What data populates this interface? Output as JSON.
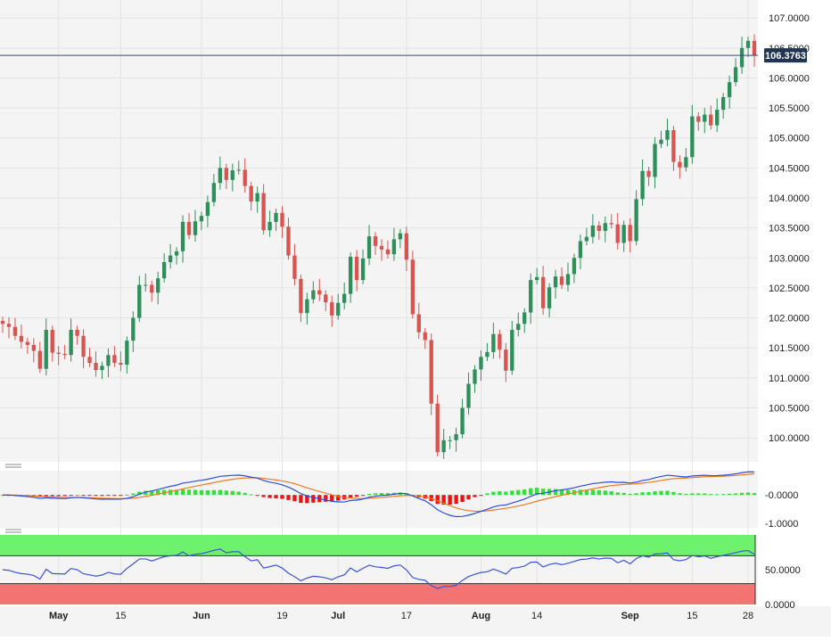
{
  "chart_data": {
    "type": "candlestick",
    "title": "",
    "colors": {
      "up": "#2f8f5b",
      "down": "#d9534f",
      "grid": "#e3e3e3",
      "price_line": "#3b4a6b",
      "price_tag_bg": "#1f3552",
      "macd_line": "#2a4fe0",
      "signal_line": "#f07a23",
      "hist_pos": "#33e033",
      "hist_neg": "#ee1111",
      "rsi_line": "#3a55d4",
      "rsi_overbought": "#6ef26e",
      "rsi_oversold": "#f47474"
    },
    "price_panel": {
      "ylim": [
        99.6,
        107.3
      ],
      "y_ticks": [
        "107.0000",
        "106.5000",
        "106.0000",
        "105.5000",
        "105.0000",
        "104.5000",
        "104.0000",
        "103.5000",
        "103.0000",
        "102.5000",
        "102.0000",
        "101.5000",
        "101.0000",
        "100.5000",
        "100.0000"
      ],
      "last_price": 106.3763,
      "last_price_label": "106.3763"
    },
    "x_ticks": [
      {
        "label": "May",
        "bold": true,
        "idx": 9
      },
      {
        "label": "15",
        "bold": false,
        "idx": 19
      },
      {
        "label": "Jun",
        "bold": true,
        "idx": 32
      },
      {
        "label": "19",
        "bold": false,
        "idx": 45
      },
      {
        "label": "Jul",
        "bold": true,
        "idx": 54
      },
      {
        "label": "17",
        "bold": false,
        "idx": 65
      },
      {
        "label": "Aug",
        "bold": true,
        "idx": 77
      },
      {
        "label": "14",
        "bold": false,
        "idx": 86
      },
      {
        "label": "Sep",
        "bold": true,
        "idx": 101
      },
      {
        "label": "15",
        "bold": false,
        "idx": 111
      },
      {
        "label": "28",
        "bold": false,
        "idx": 120
      }
    ],
    "candles": {
      "open": [
        101.95,
        101.9,
        101.85,
        101.7,
        101.6,
        101.55,
        101.45,
        101.15,
        101.8,
        101.42,
        101.4,
        101.38,
        101.8,
        101.7,
        101.35,
        101.25,
        101.13,
        101.2,
        101.38,
        101.25,
        101.22,
        101.62,
        102.0,
        102.55,
        102.55,
        102.42,
        102.66,
        102.93,
        103.04,
        103.11,
        103.6,
        103.38,
        103.61,
        103.7,
        103.93,
        104.25,
        104.5,
        104.3,
        104.46,
        104.47,
        104.2,
        103.94,
        104.08,
        103.46,
        103.6,
        103.75,
        103.52,
        103.04,
        102.65,
        102.08,
        102.31,
        102.46,
        102.39,
        102.26,
        102.04,
        102.25,
        102.4,
        103.02,
        102.63,
        102.99,
        103.36,
        103.2,
        103.14,
        103.06,
        103.31,
        103.41,
        102.97,
        102.06,
        101.76,
        101.63,
        100.57,
        99.76,
        99.96,
        99.96,
        100.06,
        100.5,
        100.9,
        101.14,
        101.35,
        101.43,
        101.73,
        101.47,
        101.12,
        101.8,
        101.9,
        102.09,
        102.63,
        102.68,
        102.16,
        102.51,
        102.69,
        102.55,
        102.73,
        103.0,
        103.28,
        103.35,
        103.54,
        103.45,
        103.58,
        103.56,
        103.25,
        103.55,
        103.28,
        103.98,
        104.45,
        104.35,
        104.9,
        104.97,
        105.13,
        104.6,
        104.51,
        104.68,
        105.36,
        105.27,
        105.39,
        105.21,
        105.47,
        105.68,
        105.93,
        106.18,
        106.5,
        106.62
      ]
    },
    "macd": {
      "ylim": [
        -1.15,
        0.85
      ],
      "y_ticks": [
        "-0.0000",
        "-1.0000"
      ]
    },
    "rsi": {
      "ylim": [
        0,
        100
      ],
      "overbought": 70,
      "oversold": 30,
      "y_ticks": [
        "50.0000",
        "0.0000"
      ]
    }
  }
}
